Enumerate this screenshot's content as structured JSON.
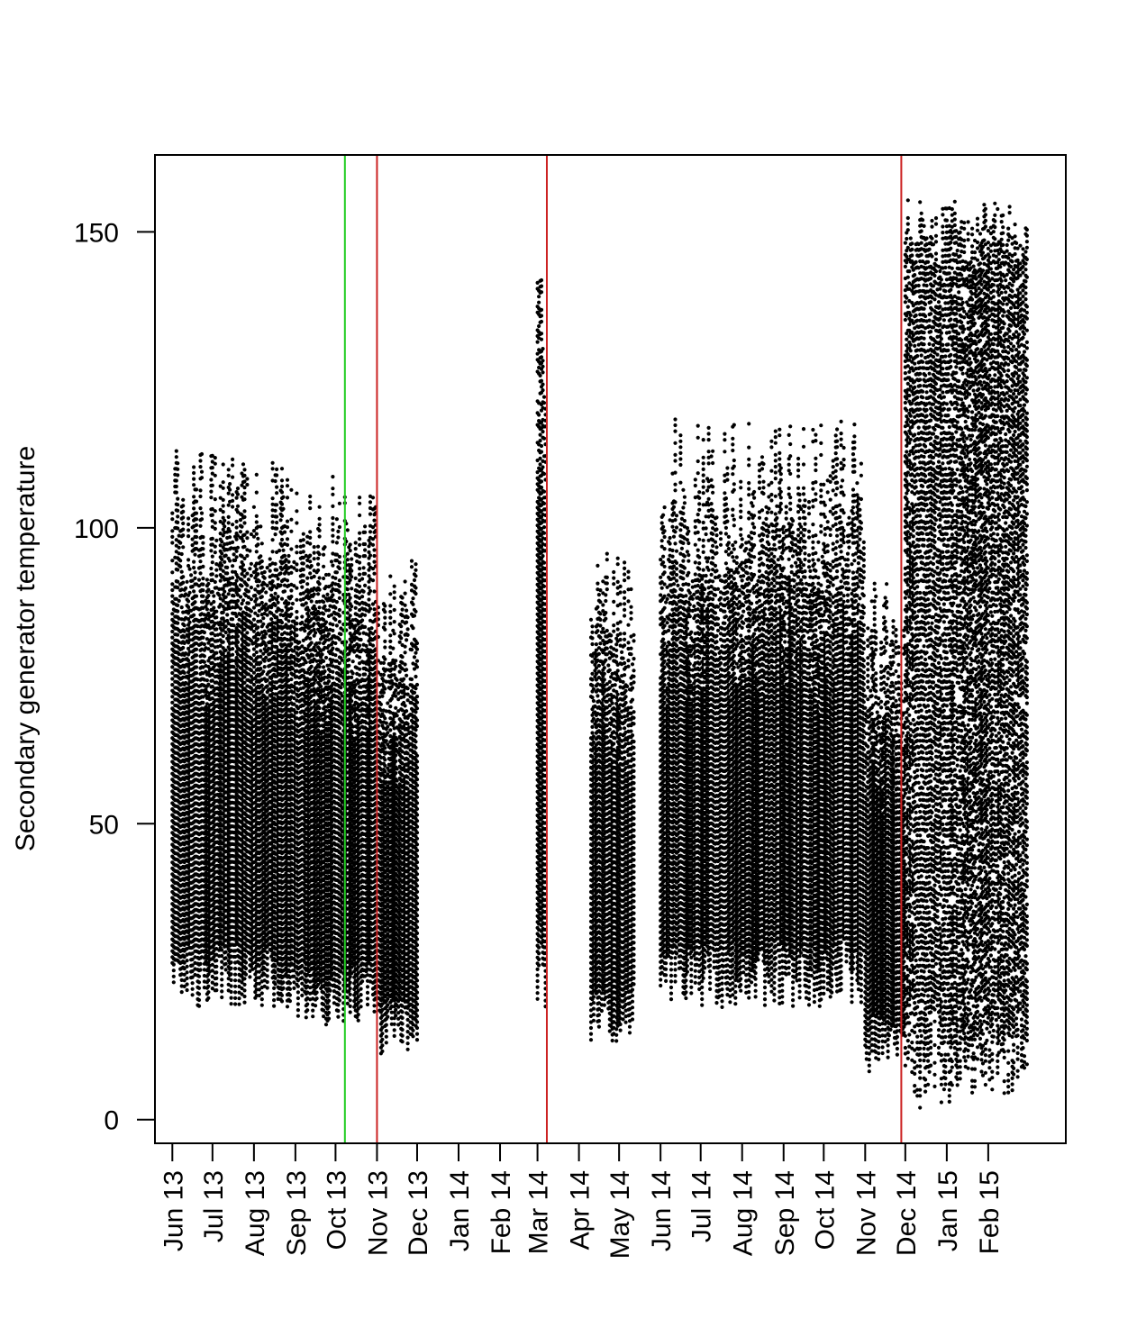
{
  "chart_data": {
    "type": "scatter",
    "title": "",
    "xlabel": "",
    "ylabel": "Secondary generator temperature",
    "ylim": [
      -4,
      163
    ],
    "xlim": [
      "2013-05-19",
      "2015-03-31"
    ],
    "y_ticks": [
      0,
      50,
      100,
      150
    ],
    "x_ticks": [
      {
        "label": "Jun 13",
        "date": "2013-06-01"
      },
      {
        "label": "Jul 13",
        "date": "2013-07-01"
      },
      {
        "label": "Aug 13",
        "date": "2013-08-01"
      },
      {
        "label": "Sep 13",
        "date": "2013-09-01"
      },
      {
        "label": "Oct 13",
        "date": "2013-10-01"
      },
      {
        "label": "Nov 13",
        "date": "2013-11-01"
      },
      {
        "label": "Dec 13",
        "date": "2013-12-01"
      },
      {
        "label": "Jan 14",
        "date": "2014-01-01"
      },
      {
        "label": "Feb 14",
        "date": "2014-02-01"
      },
      {
        "label": "Mar 14",
        "date": "2014-03-01"
      },
      {
        "label": "Apr 14",
        "date": "2014-04-01"
      },
      {
        "label": "May 14",
        "date": "2014-05-01"
      },
      {
        "label": "Jun 14",
        "date": "2014-06-01"
      },
      {
        "label": "Jul 14",
        "date": "2014-07-01"
      },
      {
        "label": "Aug 14",
        "date": "2014-08-01"
      },
      {
        "label": "Sep 14",
        "date": "2014-09-01"
      },
      {
        "label": "Oct 14",
        "date": "2014-10-01"
      },
      {
        "label": "Nov 14",
        "date": "2014-11-01"
      },
      {
        "label": "Dec 14",
        "date": "2014-12-01"
      },
      {
        "label": "Jan 15",
        "date": "2015-01-01"
      },
      {
        "label": "Feb 15",
        "date": "2015-02-01"
      }
    ],
    "vertical_lines": [
      {
        "date": "2013-10-08",
        "color": "#22cc22"
      },
      {
        "date": "2013-11-01",
        "color": "#cc2222"
      },
      {
        "date": "2014-03-08",
        "color": "#cc2222"
      },
      {
        "date": "2014-11-28",
        "color": "#cc2222"
      }
    ],
    "series": [
      {
        "segments": [
          {
            "start": "2013-06-01",
            "end": "2013-08-31",
            "min": 19,
            "max": 114,
            "density": "dense"
          },
          {
            "start": "2013-09-01",
            "end": "2013-10-31",
            "min": 16,
            "max": 109,
            "density": "dense"
          },
          {
            "start": "2013-11-02",
            "end": "2013-12-01",
            "min": 11,
            "max": 95,
            "density": "dense"
          },
          {
            "start": "2014-03-01",
            "end": "2014-03-07",
            "min": 19,
            "max": 155,
            "density": "dense"
          },
          {
            "start": "2014-04-10",
            "end": "2014-05-12",
            "min": 13,
            "max": 97,
            "density": "dense"
          },
          {
            "start": "2014-06-01",
            "end": "2014-10-31",
            "min": 19,
            "max": 119,
            "density": "dense"
          },
          {
            "start": "2014-11-01",
            "end": "2014-11-30",
            "min": 8,
            "max": 93,
            "density": "dense"
          },
          {
            "start": "2014-12-01",
            "end": "2015-03-02",
            "min": 2,
            "max": 156,
            "density": "sparse"
          }
        ]
      }
    ],
    "grid": false,
    "marker_color": "#000000",
    "frame_color": "#000000"
  }
}
